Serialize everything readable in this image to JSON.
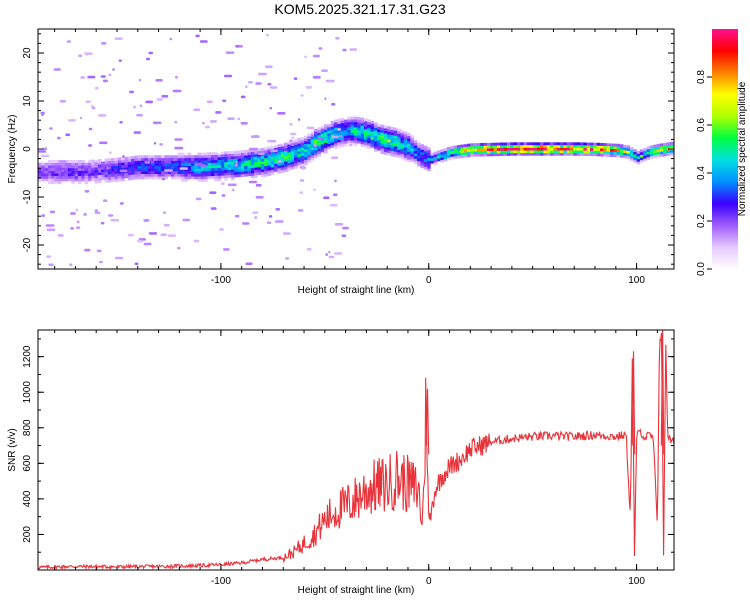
{
  "title": "KOM5.2025.321.17.31.G23",
  "colors": {
    "snr_line": "#e8333a",
    "axis": "#000000",
    "colormap": [
      "#ffffff",
      "#e6c8ff",
      "#a05cff",
      "#3a00ff",
      "#0090ff",
      "#00e0e0",
      "#00ff40",
      "#b0ff00",
      "#ffff00",
      "#ff8000",
      "#ff0000",
      "#ff1090"
    ]
  },
  "chart_data": [
    {
      "type": "heatmap",
      "title": "KOM5.2025.321.17.31.G23",
      "xlabel": "Height of straight line (km)",
      "ylabel": "Frequency (Hz)",
      "xlim": [
        -188,
        118
      ],
      "ylim": [
        -25,
        25
      ],
      "xticks": [
        -100,
        0,
        100
      ],
      "xtick_labels": [
        "-100",
        "0",
        "100"
      ],
      "yticks": [
        -20,
        -10,
        0,
        10,
        20
      ],
      "ytick_labels": [
        "-20",
        "-10",
        "0",
        "10",
        "20"
      ],
      "colorbar": {
        "label": "Normalized spectral amplitude",
        "range": [
          0,
          1
        ],
        "ticks": [
          0.0,
          0.2,
          0.4,
          0.6,
          0.8
        ],
        "tick_labels": [
          "0.0",
          "0.2",
          "0.4",
          "0.6",
          "0.8"
        ]
      },
      "ridge": {
        "x": [
          -188,
          -175,
          -165,
          -150,
          -140,
          -125,
          -110,
          -100,
          -90,
          -80,
          -70,
          -60,
          -55,
          -50,
          -45,
          -40,
          -35,
          -30,
          -25,
          -20,
          -15,
          -10,
          -5,
          0,
          10,
          20,
          30,
          40,
          50,
          60,
          70,
          80,
          90,
          95,
          100,
          105,
          110,
          118
        ],
        "y": [
          -5,
          -5,
          -5,
          -4.5,
          -4,
          -4,
          -4,
          -3.8,
          -3.5,
          -3,
          -2,
          -0.5,
          1,
          2,
          3,
          3.5,
          3.5,
          3,
          2,
          1.5,
          1,
          0,
          -1.5,
          -2.5,
          -1,
          -0.4,
          -0.3,
          -0.2,
          -0.2,
          -0.2,
          -0.2,
          -0.3,
          -0.5,
          -0.8,
          -2,
          -1,
          -0.5,
          0
        ],
        "amp": [
          0.2,
          0.25,
          0.22,
          0.28,
          0.3,
          0.3,
          0.4,
          0.42,
          0.45,
          0.48,
          0.5,
          0.45,
          0.5,
          0.48,
          0.45,
          0.4,
          0.45,
          0.48,
          0.5,
          0.55,
          0.45,
          0.4,
          0.3,
          0.35,
          0.55,
          0.75,
          0.85,
          0.9,
          0.92,
          0.9,
          0.88,
          0.85,
          0.7,
          0.6,
          0.45,
          0.55,
          0.7,
          0.6
        ]
      }
    },
    {
      "type": "line",
      "xlabel": "Height of straight line (km)",
      "ylabel": "SNR (v/v)",
      "xlim": [
        -188,
        118
      ],
      "ylim": [
        0,
        1350
      ],
      "xticks": [
        -100,
        0,
        100
      ],
      "xtick_labels": [
        "-100",
        "0",
        "100"
      ],
      "yticks": [
        200,
        400,
        600,
        800,
        1000,
        1200
      ],
      "ytick_labels": [
        "200",
        "400",
        "600",
        "800",
        "1000",
        "1200"
      ],
      "series": [
        {
          "name": "SNR",
          "x": [
            -188,
            -170,
            -150,
            -130,
            -110,
            -100,
            -90,
            -80,
            -70,
            -65,
            -60,
            -55,
            -50,
            -45,
            -40,
            -35,
            -30,
            -25,
            -20,
            -15,
            -10,
            -5,
            -3,
            -1,
            0,
            3,
            6,
            10,
            15,
            20,
            25,
            30,
            40,
            50,
            60,
            70,
            80,
            90,
            95,
            97,
            98,
            99,
            100,
            102,
            104,
            106,
            108,
            110,
            111,
            112,
            113,
            114,
            115,
            116,
            118
          ],
          "y": [
            15,
            20,
            18,
            20,
            25,
            30,
            40,
            60,
            70,
            100,
            150,
            200,
            280,
            330,
            360,
            400,
            450,
            470,
            480,
            520,
            480,
            450,
            250,
            1020,
            240,
            450,
            520,
            580,
            620,
            680,
            700,
            720,
            740,
            750,
            755,
            750,
            760,
            750,
            760,
            300,
            1230,
            60,
            750,
            780,
            740,
            760,
            740,
            250,
            1260,
            1350,
            60,
            1300,
            760,
            730,
            720
          ]
        }
      ],
      "markers": [
        {
          "x": -0.6,
          "y": 1020
        },
        {
          "x": 98.5,
          "y": 1230
        },
        {
          "x": 112.5,
          "y": 1350
        }
      ]
    }
  ]
}
